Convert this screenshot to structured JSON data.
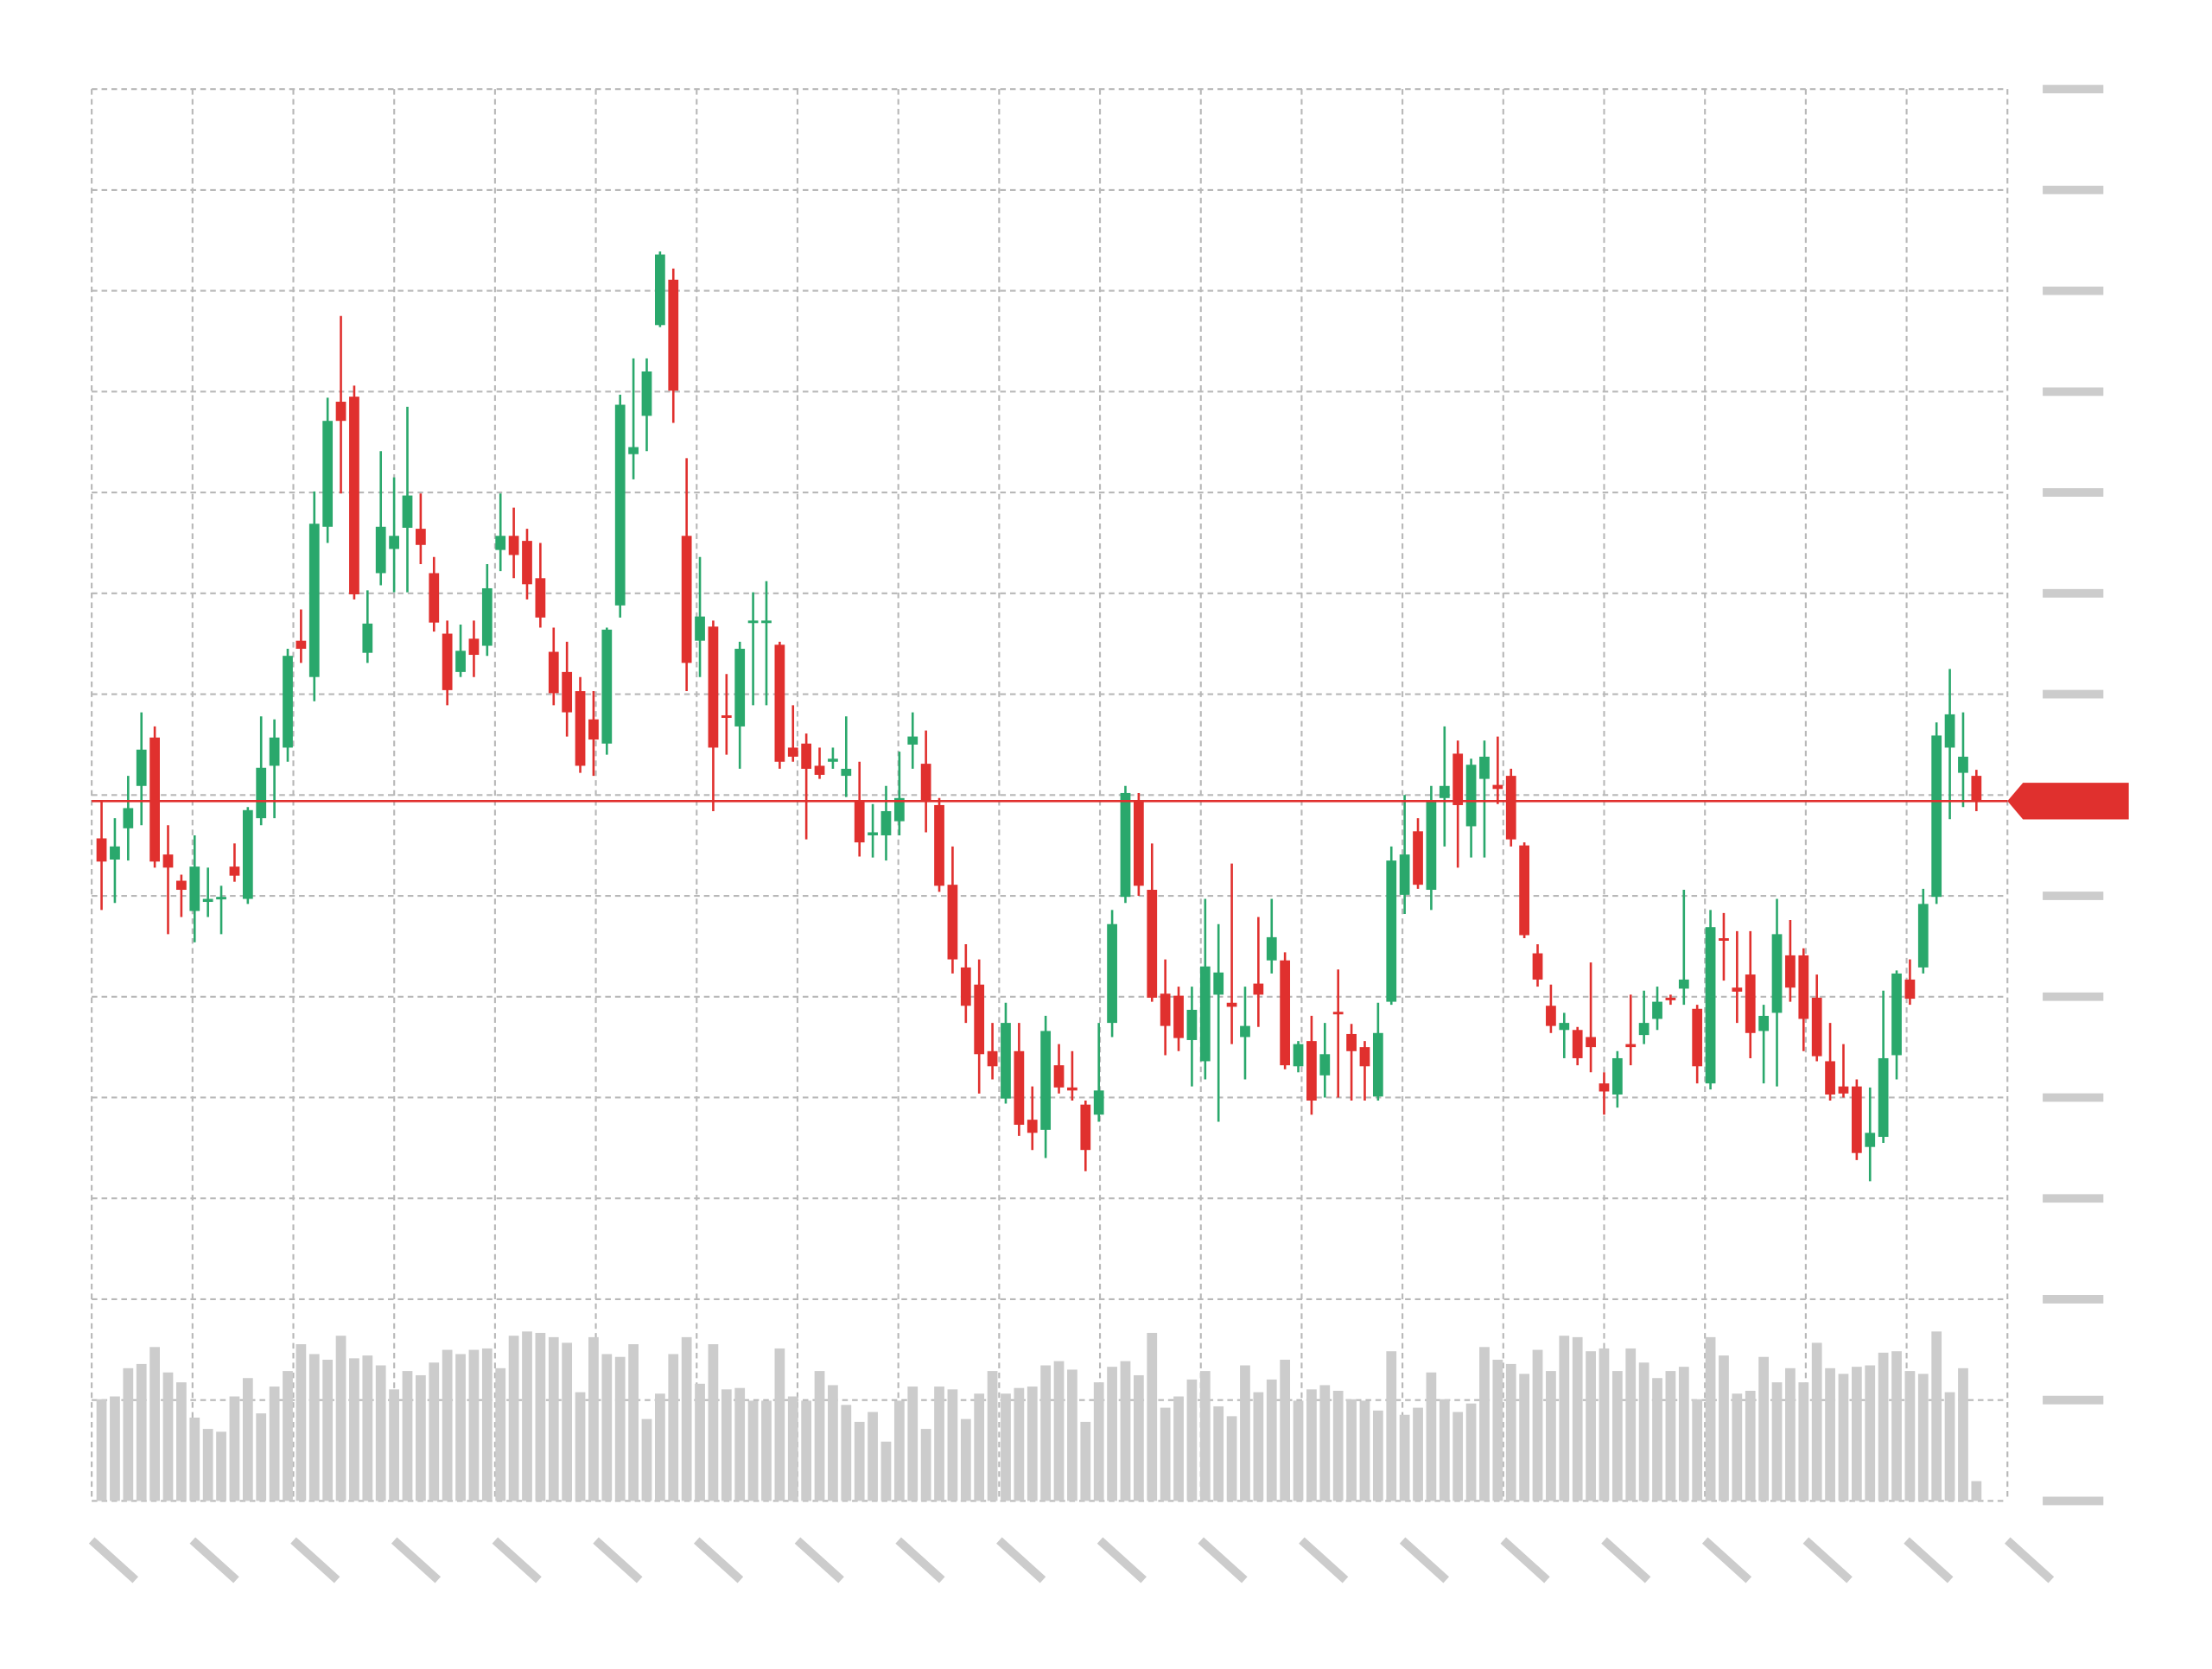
{
  "chart_data": {
    "type": "candlestick",
    "up_color": "#2aa86c",
    "down_color": "#e0302e",
    "volume_color": "#cccccc",
    "grid": true,
    "ylim": [
      0,
      140
    ],
    "yticks": [
      0,
      10,
      20,
      30,
      40,
      50,
      60,
      70,
      80,
      90,
      100,
      110,
      120,
      130,
      140
    ],
    "xlim": [
      0,
      19
    ],
    "xticks": [
      0,
      1,
      2,
      3,
      4,
      5,
      6,
      7,
      8,
      9,
      10,
      11,
      12,
      13,
      14,
      15,
      16,
      17,
      18,
      19
    ],
    "y2lim": [
      0,
      1000
    ],
    "open": [
      65.7,
      63.6,
      66.7,
      70.9,
      75.7,
      64.1,
      61.5,
      58.5,
      59.4,
      59.7,
      62.9,
      59.7,
      67.7,
      72.9,
      74.7,
      85.3,
      81.7,
      96.6,
      109.0,
      109.5,
      84.1,
      92.0,
      94.4,
      96.5,
      96.4,
      92.0,
      86.0,
      82.2,
      85.5,
      84.8,
      94.3,
      95.7,
      95.2,
      91.5,
      84.2,
      82.2,
      80.3,
      77.5,
      75.1,
      88.8,
      103.8,
      107.6,
      116.6,
      121.1,
      95.7,
      85.3,
      86.7,
      77.9,
      76.8,
      87.3,
      87.3,
      84.9,
      74.7,
      75.1,
      72.9,
      73.3,
      71.9,
      69.5,
      66.0,
      66.0,
      67.4,
      75.0,
      73.1,
      69.0,
      61.1,
      52.9,
      51.2,
      44.6,
      39.9,
      44.6,
      37.8,
      36.8,
      43.2,
      41.0,
      39.3,
      38.3,
      47.4,
      59.9,
      69.5,
      60.6,
      50.3,
      50.1,
      45.7,
      43.6,
      50.2,
      49.4,
      46.0,
      51.3,
      53.6,
      53.6,
      43.1,
      45.6,
      42.2,
      48.5,
      46.3,
      45.0,
      40.1,
      49.5,
      60.1,
      66.4,
      60.6,
      69.7,
      74.1,
      66.9,
      71.6,
      71.0,
      71.9,
      65.0,
      54.3,
      49.1,
      46.7,
      46.7,
      46.0,
      41.4,
      40.3,
      45.3,
      46.2,
      47.8,
      49.9,
      50.8,
      48.8,
      41.4,
      55.8,
      50.9,
      52.2,
      46.6,
      48.4,
      54.1,
      54.1,
      49.9,
      43.6,
      41.1,
      41.1,
      35.1,
      36.1,
      44.2,
      51.7,
      52.9,
      59.9,
      74.7,
      72.2,
      71.9
    ],
    "close": [
      63.4,
      64.9,
      68.7,
      74.5,
      63.4,
      62.8,
      60.6,
      62.9,
      59.7,
      59.9,
      62.0,
      68.5,
      72.7,
      75.7,
      83.8,
      84.5,
      96.9,
      107.1,
      107.1,
      89.9,
      87.0,
      96.6,
      95.7,
      99.7,
      94.8,
      87.1,
      80.4,
      84.3,
      83.9,
      90.5,
      95.7,
      93.8,
      90.9,
      87.6,
      80.1,
      78.2,
      72.9,
      75.5,
      86.4,
      108.7,
      104.5,
      112.0,
      123.6,
      110.1,
      83.1,
      87.7,
      74.7,
      77.7,
      84.5,
      87.3,
      87.3,
      73.3,
      73.8,
      72.6,
      72.0,
      73.6,
      72.6,
      65.3,
      66.3,
      68.4,
      69.7,
      75.8,
      69.5,
      61.0,
      53.7,
      49.1,
      44.3,
      43.1,
      47.4,
      37.3,
      36.5,
      46.6,
      41.0,
      40.7,
      34.8,
      40.7,
      57.2,
      70.2,
      61.0,
      49.9,
      47.1,
      45.9,
      48.7,
      53.0,
      52.4,
      49.0,
      47.1,
      50.2,
      55.9,
      43.2,
      45.3,
      39.7,
      44.3,
      48.3,
      44.6,
      43.1,
      46.4,
      63.5,
      64.1,
      61.1,
      69.5,
      70.9,
      69.0,
      73.0,
      73.8,
      70.6,
      65.6,
      56.1,
      51.7,
      47.1,
      47.4,
      43.9,
      45.0,
      40.6,
      43.9,
      45.0,
      47.4,
      49.5,
      49.8,
      51.7,
      43.1,
      56.9,
      55.6,
      50.5,
      46.4,
      48.1,
      56.2,
      50.9,
      47.8,
      44.1,
      40.3,
      40.4,
      34.5,
      36.5,
      43.9,
      52.3,
      49.8,
      59.2,
      75.9,
      78.0,
      73.8,
      69.4
    ],
    "high": [
      69.4,
      67.7,
      71.9,
      78.2,
      76.8,
      67.0,
      62.1,
      66.0,
      62.8,
      61.0,
      65.2,
      68.8,
      77.8,
      77.5,
      84.5,
      88.4,
      100.1,
      109.4,
      117.5,
      110.6,
      90.3,
      104.1,
      101.5,
      108.5,
      99.9,
      93.6,
      87.3,
      86.9,
      87.3,
      92.9,
      99.9,
      98.5,
      96.4,
      95.0,
      86.6,
      85.2,
      81.7,
      80.3,
      86.6,
      109.7,
      113.3,
      113.3,
      123.9,
      122.2,
      103.4,
      93.6,
      87.3,
      82.0,
      85.2,
      90.1,
      91.2,
      85.2,
      78.9,
      76.1,
      74.7,
      74.7,
      77.8,
      73.3,
      69.1,
      70.9,
      74.3,
      78.2,
      76.4,
      69.7,
      64.9,
      55.2,
      53.7,
      47.4,
      49.4,
      47.4,
      41.1,
      48.1,
      45.3,
      44.6,
      39.7,
      47.4,
      58.6,
      70.9,
      70.2,
      65.2,
      53.7,
      51.0,
      51.0,
      59.7,
      57.2,
      63.2,
      51.0,
      57.9,
      59.7,
      54.4,
      45.6,
      48.1,
      47.4,
      52.7,
      47.3,
      45.6,
      49.4,
      64.9,
      70.0,
      67.7,
      70.9,
      76.8,
      75.4,
      73.6,
      75.4,
      75.8,
      72.6,
      65.3,
      55.2,
      51.2,
      48.4,
      47.0,
      53.4,
      42.5,
      44.6,
      50.2,
      50.6,
      51.0,
      50.2,
      60.6,
      49.2,
      58.6,
      58.3,
      56.5,
      56.5,
      49.2,
      59.7,
      57.6,
      54.8,
      52.2,
      47.4,
      45.3,
      41.8,
      41.0,
      50.6,
      52.6,
      53.7,
      60.7,
      77.2,
      82.5,
      78.2,
      72.5
    ],
    "low": [
      58.6,
      59.3,
      63.5,
      67.0,
      62.8,
      56.2,
      57.9,
      55.4,
      57.9,
      56.2,
      61.4,
      59.2,
      67.0,
      67.7,
      73.3,
      83.1,
      79.3,
      95.0,
      99.9,
      89.4,
      83.1,
      90.8,
      90.1,
      90.1,
      92.9,
      86.2,
      78.9,
      81.7,
      81.7,
      83.8,
      92.2,
      91.5,
      89.4,
      86.6,
      78.9,
      75.8,
      72.2,
      71.9,
      74.0,
      87.6,
      101.3,
      104.1,
      116.4,
      106.9,
      80.3,
      81.7,
      68.4,
      74.0,
      72.6,
      78.9,
      78.9,
      72.6,
      73.3,
      65.6,
      71.6,
      72.6,
      69.8,
      63.9,
      63.8,
      63.5,
      66.0,
      72.6,
      66.3,
      60.4,
      52.3,
      47.4,
      40.4,
      41.8,
      39.4,
      36.2,
      34.8,
      34.0,
      40.4,
      39.7,
      32.7,
      37.6,
      46.0,
      59.3,
      60.0,
      49.5,
      44.2,
      44.6,
      41.1,
      41.8,
      37.6,
      45.3,
      41.8,
      47.0,
      52.3,
      42.8,
      42.5,
      38.3,
      40.0,
      40.0,
      39.7,
      39.7,
      39.7,
      49.2,
      58.2,
      60.7,
      58.6,
      64.9,
      62.8,
      63.8,
      63.8,
      69.1,
      64.9,
      55.8,
      51.0,
      46.4,
      43.9,
      43.2,
      42.5,
      38.3,
      39.0,
      43.2,
      45.3,
      46.7,
      49.2,
      49.2,
      41.4,
      40.8,
      51.6,
      47.4,
      43.9,
      41.4,
      41.1,
      49.5,
      44.6,
      43.6,
      39.7,
      40.0,
      33.8,
      31.7,
      35.5,
      41.8,
      49.2,
      52.3,
      59.2,
      67.6,
      68.8,
      68.4
    ],
    "volume": [
      72,
      74,
      94,
      97,
      109,
      91,
      84,
      59,
      51,
      49,
      74,
      87,
      62,
      81,
      92,
      111,
      104,
      100,
      117,
      101,
      103,
      96,
      79,
      92,
      89,
      98,
      107,
      104,
      107,
      108,
      94,
      117,
      120,
      119,
      116,
      112,
      77,
      116,
      104,
      102,
      111,
      58,
      76,
      104,
      116,
      83,
      111,
      79,
      80,
      71,
      71,
      108,
      74,
      71,
      92,
      82,
      68,
      56,
      63,
      42,
      71,
      81,
      51,
      81,
      79,
      58,
      76,
      92,
      76,
      80,
      81,
      96,
      99,
      93,
      56,
      84,
      95,
      99,
      89,
      119,
      66,
      74,
      86,
      92,
      67,
      60,
      96,
      77,
      86,
      100,
      71,
      79,
      82,
      78,
      72,
      71,
      64,
      106,
      61,
      66,
      91,
      72,
      63,
      69,
      109,
      100,
      97,
      90,
      107,
      92,
      117,
      116,
      106,
      108,
      92,
      108,
      98,
      87,
      92,
      95,
      72,
      116,
      103,
      76,
      78,
      102,
      84,
      94,
      84,
      112,
      94,
      90,
      95,
      96,
      105,
      106,
      92,
      90,
      120,
      77,
      94,
      14
    ]
  }
}
